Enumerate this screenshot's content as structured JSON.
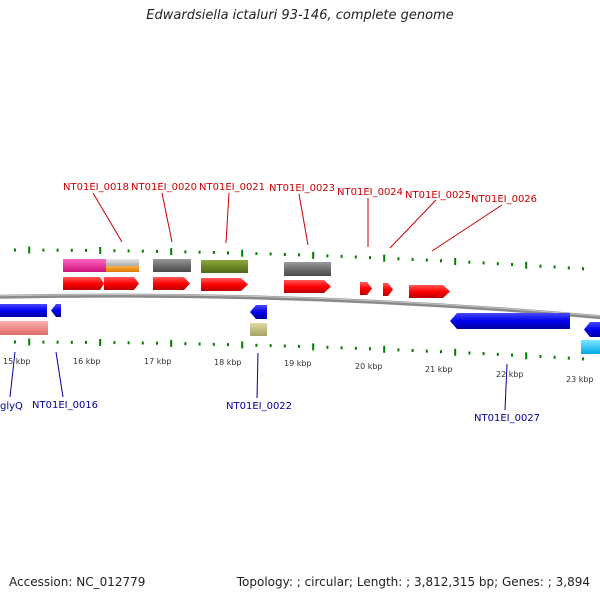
{
  "title": "Edwardsiella ictaluri 93-146, complete genome",
  "footer": {
    "accession_label": "Accession:",
    "accession": "NC_012779",
    "topology_label": "Topology:",
    "topology": "circular",
    "length_label": "Length:",
    "length": "3,812,315 bp",
    "genes_label": "Genes:",
    "genes": "3,894"
  },
  "scale": {
    "unit": "kbp",
    "ticks": [
      "15 kbp",
      "16 kbp",
      "17 kbp",
      "18 kbp",
      "19 kbp",
      "20 kbp",
      "21 kbp",
      "22 kbp",
      "23 kbp"
    ]
  },
  "colors": {
    "forward_gene": "#ff0000",
    "reverse_gene": "#0000ee",
    "backbone": "#888888",
    "gc_ticks": "#008000",
    "label_forward": "#cc0000",
    "label_reverse": "#000099"
  },
  "forward_labels": [
    "NT01EI_0018",
    "NT01EI_0020",
    "NT01EI_0021",
    "NT01EI_0023",
    "NT01EI_0024",
    "NT01EI_0025",
    "NT01EI_0026"
  ],
  "reverse_labels": [
    "glyQ",
    "NT01EI_0016",
    "NT01EI_0022",
    "NT01EI_0027"
  ]
}
